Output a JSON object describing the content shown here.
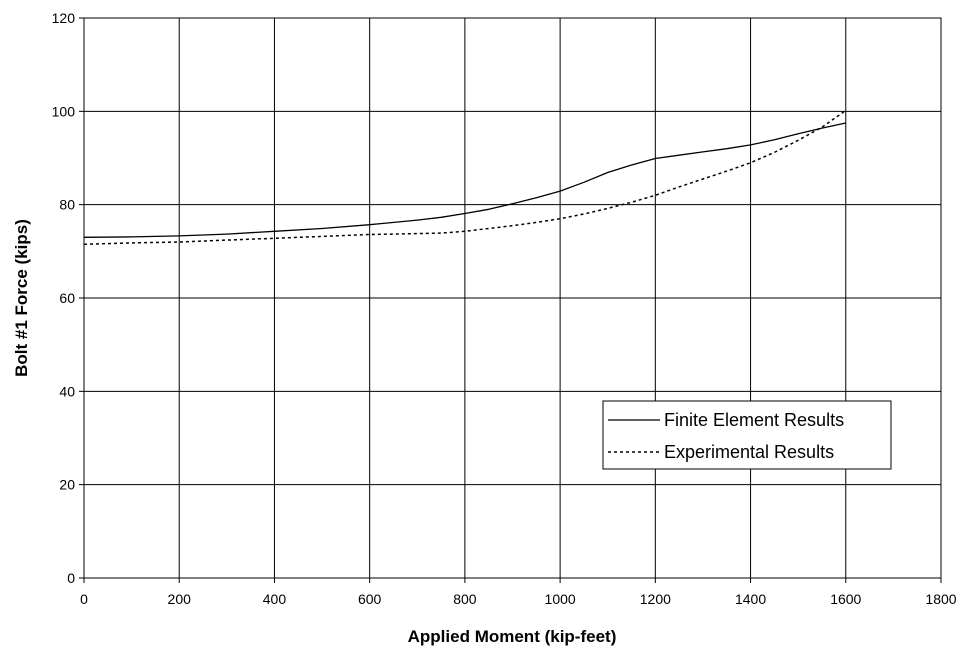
{
  "chart_data": {
    "type": "line",
    "title": "",
    "xlabel": "Applied Moment (kip-feet)",
    "ylabel": "Bolt #1 Force (kips)",
    "xlim": [
      0,
      1800
    ],
    "ylim": [
      0,
      120
    ],
    "xticks": [
      0,
      200,
      400,
      600,
      800,
      1000,
      1200,
      1400,
      1600,
      1800
    ],
    "yticks": [
      0,
      20,
      40,
      60,
      80,
      100,
      120
    ],
    "grid": true,
    "legend_position": "lower-right",
    "series": [
      {
        "name": "Finite Element Results",
        "style": "solid",
        "color": "#000000",
        "x": [
          0,
          100,
          200,
          300,
          400,
          500,
          600,
          700,
          750,
          800,
          850,
          900,
          950,
          1000,
          1050,
          1100,
          1150,
          1200,
          1250,
          1300,
          1350,
          1400,
          1450,
          1500,
          1550,
          1600
        ],
        "y": [
          73,
          73.1,
          73.3,
          73.7,
          74.3,
          74.9,
          75.7,
          76.7,
          77.3,
          78.1,
          79.0,
          80.2,
          81.5,
          82.9,
          84.8,
          86.9,
          88.5,
          89.9,
          90.6,
          91.3,
          92.0,
          92.8,
          93.9,
          95.2,
          96.4,
          97.5
        ]
      },
      {
        "name": "Experimental Results",
        "style": "dashed",
        "color": "#000000",
        "x": [
          0,
          100,
          200,
          300,
          400,
          500,
          600,
          700,
          750,
          800,
          850,
          900,
          950,
          1000,
          1050,
          1100,
          1150,
          1200,
          1250,
          1300,
          1350,
          1400,
          1450,
          1500,
          1550,
          1600
        ],
        "y": [
          71.5,
          71.8,
          72.0,
          72.4,
          72.8,
          73.2,
          73.6,
          73.8,
          73.9,
          74.3,
          74.9,
          75.5,
          76.2,
          77.0,
          78.0,
          79.2,
          80.5,
          82.0,
          83.8,
          85.5,
          87.2,
          89.0,
          91.2,
          93.8,
          96.6,
          100.2
        ]
      }
    ]
  }
}
